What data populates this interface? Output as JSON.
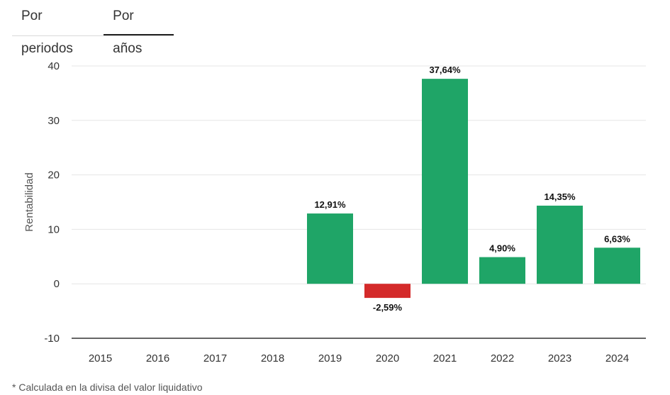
{
  "tabs": [
    {
      "label": "Por periodos",
      "active": false
    },
    {
      "label": "Por años",
      "active": true
    }
  ],
  "footnote": "* Calculada en la divisa del valor liquidativo",
  "colors": {
    "positive": "#1fa567",
    "negative": "#d42a2a",
    "grid": "#e5e5e5",
    "axis": "#333333"
  },
  "chart_data": {
    "type": "bar",
    "title": "",
    "ylabel": "Rentabilidad",
    "xlabel": "",
    "ylim": [
      -10,
      40
    ],
    "yticks": [
      -10,
      0,
      10,
      20,
      30,
      40
    ],
    "categories": [
      "2015",
      "2016",
      "2017",
      "2018",
      "2019",
      "2020",
      "2021",
      "2022",
      "2023",
      "2024"
    ],
    "values": [
      null,
      null,
      null,
      null,
      12.91,
      -2.59,
      37.64,
      4.9,
      14.35,
      6.63
    ],
    "labels": [
      "",
      "",
      "",
      "",
      "12,91%",
      "-2,59%",
      "37,64%",
      "4,90%",
      "14,35%",
      "6,63%"
    ],
    "grid": true,
    "legend": "none"
  }
}
